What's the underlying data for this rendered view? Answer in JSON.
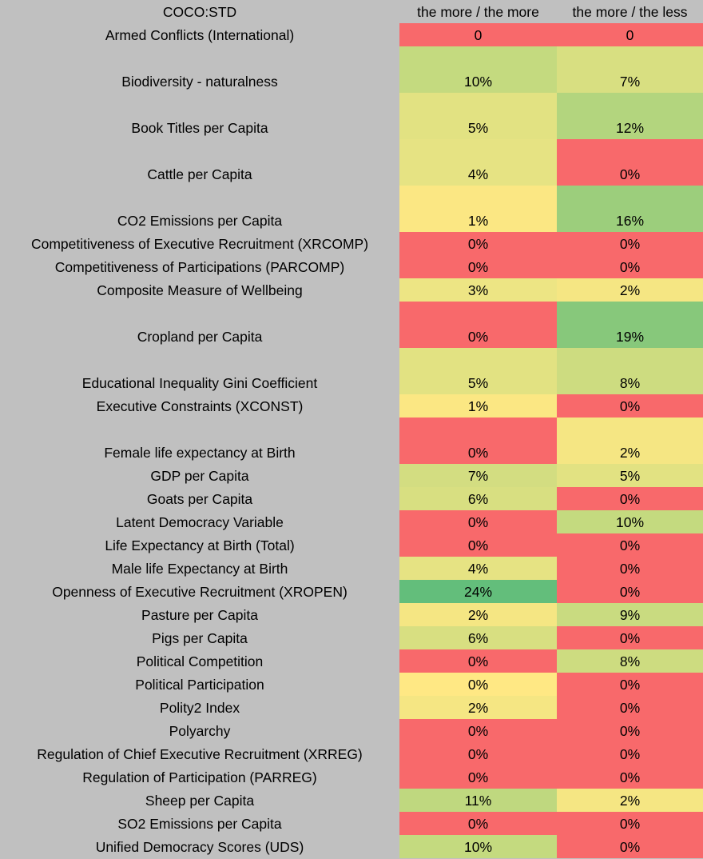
{
  "header": {
    "label": "COCO:STD",
    "col1": "the more / the more",
    "col2": "the more / the less"
  },
  "rows": [
    {
      "label": "Armed Conflicts (International)",
      "v1": "0",
      "c1": "#f8696b",
      "v2": "0",
      "c2": "#f8696b",
      "tall": false
    },
    {
      "label": "Biodiversity - naturalness",
      "v1": "10%",
      "c1": "#c4da7f",
      "v2": "7%",
      "c2": "#d8df81",
      "tall": true
    },
    {
      "label": "Book Titles per Capita",
      "v1": "5%",
      "c1": "#e2e282",
      "v2": "12%",
      "c2": "#b3d57e",
      "tall": true
    },
    {
      "label": "Cattle per Capita",
      "v1": "4%",
      "c1": "#e6e383",
      "v2": "0%",
      "c2": "#f8696b",
      "tall": true
    },
    {
      "label": "CO2 Emissions per Capita",
      "v1": "1%",
      "c1": "#fbe783",
      "v2": "16%",
      "c2": "#9cce7c",
      "tall": true
    },
    {
      "label": "Competitiveness of Executive Recruitment (XRCOMP)",
      "v1": "0%",
      "c1": "#f8696b",
      "v2": "0%",
      "c2": "#f8696b",
      "tall": false
    },
    {
      "label": "Competitiveness of Participations (PARCOMP)",
      "v1": "0%",
      "c1": "#f8696b",
      "v2": "0%",
      "c2": "#f8696b",
      "tall": false
    },
    {
      "label": "Composite Measure of Wellbeing",
      "v1": "3%",
      "c1": "#ede584",
      "v2": "2%",
      "c2": "#f5e683",
      "tall": false
    },
    {
      "label": "Cropland per Capita",
      "v1": "0%",
      "c1": "#f8696b",
      "v2": "19%",
      "c2": "#87c87b",
      "tall": true
    },
    {
      "label": "Educational Inequality Gini Coefficient",
      "v1": "5%",
      "c1": "#e2e282",
      "v2": "8%",
      "c2": "#cddc80",
      "tall": true
    },
    {
      "label": "Executive Constraints (XCONST)",
      "v1": "1%",
      "c1": "#fbe783",
      "v2": "0%",
      "c2": "#f8696b",
      "tall": false
    },
    {
      "label": "Female life expectancy at Birth",
      "v1": "0%",
      "c1": "#f8696b",
      "v2": "2%",
      "c2": "#f5e683",
      "tall": true
    },
    {
      "label": "GDP per Capita",
      "v1": "7%",
      "c1": "#d3dd81",
      "v2": "5%",
      "c2": "#e2e282",
      "tall": false
    },
    {
      "label": "Goats per Capita",
      "v1": "6%",
      "c1": "#d8df81",
      "v2": "0%",
      "c2": "#f8696b",
      "tall": false
    },
    {
      "label": "Latent Democracy Variable",
      "v1": "0%",
      "c1": "#f8696b",
      "v2": "10%",
      "c2": "#c4da7f",
      "tall": false
    },
    {
      "label": "Life Expectancy at Birth (Total)",
      "v1": "0%",
      "c1": "#f8696b",
      "v2": "0%",
      "c2": "#f8696b",
      "tall": false
    },
    {
      "label": "Male life Expectancy at Birth",
      "v1": "4%",
      "c1": "#e6e383",
      "v2": "0%",
      "c2": "#f8696b",
      "tall": false
    },
    {
      "label": "Openness of Executive Recruitment (XROPEN)",
      "v1": "24%",
      "c1": "#63be7b",
      "v2": "0%",
      "c2": "#f8696b",
      "tall": false
    },
    {
      "label": "Pasture per Capita",
      "v1": "2%",
      "c1": "#f5e683",
      "v2": "9%",
      "c2": "#c9db80",
      "tall": false
    },
    {
      "label": "Pigs per Capita",
      "v1": "6%",
      "c1": "#d8df81",
      "v2": "0%",
      "c2": "#f8696b",
      "tall": false
    },
    {
      "label": "Political Competition",
      "v1": "0%",
      "c1": "#f8696b",
      "v2": "8%",
      "c2": "#cddc80",
      "tall": false
    },
    {
      "label": "Political Participation",
      "v1": "0%",
      "c1": "#ffe884",
      "v2": "0%",
      "c2": "#f8696b",
      "tall": false
    },
    {
      "label": "Polity2 Index",
      "v1": "2%",
      "c1": "#f5e683",
      "v2": "0%",
      "c2": "#f8696b",
      "tall": false
    },
    {
      "label": "Polyarchy",
      "v1": "0%",
      "c1": "#f8696b",
      "v2": "0%",
      "c2": "#f8696b",
      "tall": false
    },
    {
      "label": "Regulation of Chief Executive Recruitment (XRREG)",
      "v1": "0%",
      "c1": "#f8696b",
      "v2": "0%",
      "c2": "#f8696b",
      "tall": false
    },
    {
      "label": "Regulation of Participation (PARREG)",
      "v1": "0%",
      "c1": "#f8696b",
      "v2": "0%",
      "c2": "#f8696b",
      "tall": false
    },
    {
      "label": "Sheep per Capita",
      "v1": "11%",
      "c1": "#bfd87f",
      "v2": "2%",
      "c2": "#f5e683",
      "tall": false
    },
    {
      "label": "SO2 Emissions per Capita",
      "v1": "0%",
      "c1": "#f8696b",
      "v2": "0%",
      "c2": "#f8696b",
      "tall": false
    },
    {
      "label": "Unified Democracy Scores (UDS)",
      "v1": "10%",
      "c1": "#c4da7f",
      "v2": "0%",
      "c2": "#f8696b",
      "tall": false
    }
  ]
}
